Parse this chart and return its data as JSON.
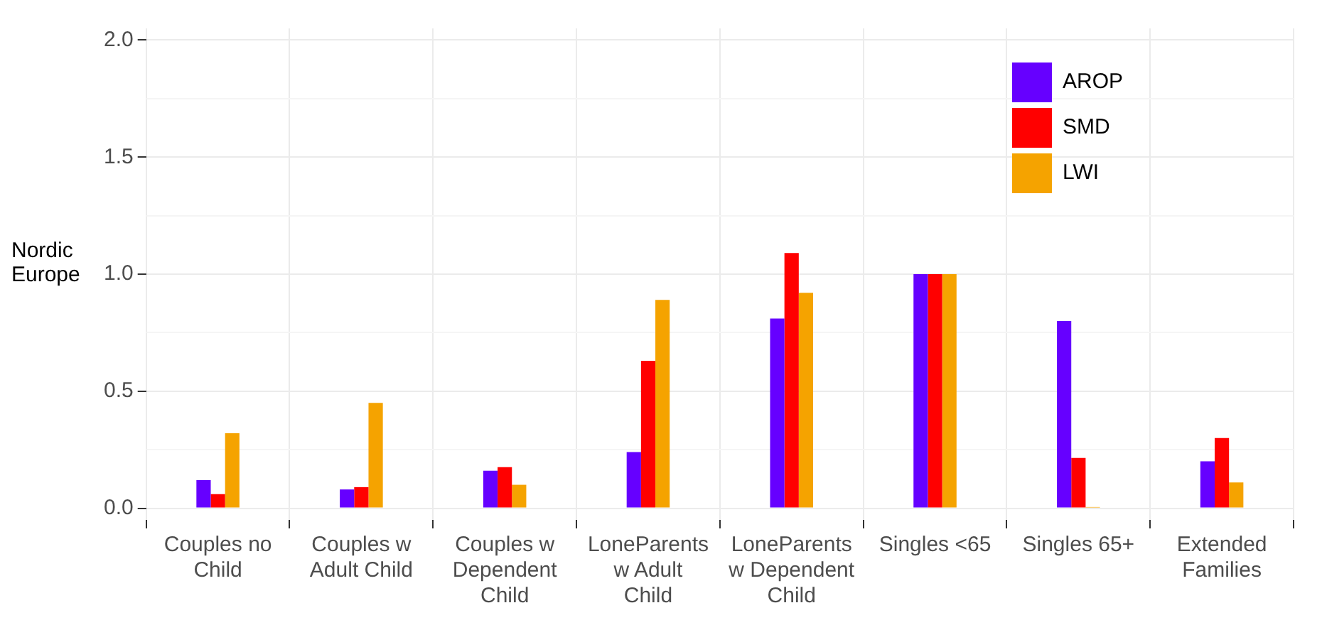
{
  "chart_data": {
    "type": "bar",
    "ylabel": "Nordic Europe",
    "categories": [
      "Couples no Child",
      "Couples w Adult Child",
      "Couples w Dependent Child",
      "LoneParents w Adult Child",
      "LoneParents w Dependent Child",
      "Singles <65",
      "Singles 65+",
      "Extended Families"
    ],
    "series": [
      {
        "name": "AROP",
        "color": "#6600ff",
        "values": [
          0.12,
          0.08,
          0.16,
          0.24,
          0.81,
          1.0,
          0.8,
          0.2
        ]
      },
      {
        "name": "SMD",
        "color": "#ff0000",
        "values": [
          0.06,
          0.09,
          0.175,
          0.63,
          1.09,
          1.0,
          0.215,
          0.3
        ]
      },
      {
        "name": "LWI",
        "color": "#f5a300",
        "values": [
          0.32,
          0.45,
          0.1,
          0.89,
          0.92,
          1.0,
          0.005,
          0.11
        ]
      }
    ],
    "ylim": [
      -0.05,
      2.05
    ],
    "yticks": [
      {
        "value": 0,
        "label": "0.0"
      },
      0.5,
      {
        "value": 1,
        "label": "1.0"
      },
      1.5,
      {
        "value": 2,
        "label": "2.0"
      }
    ],
    "grid": true,
    "legend": "top right"
  }
}
